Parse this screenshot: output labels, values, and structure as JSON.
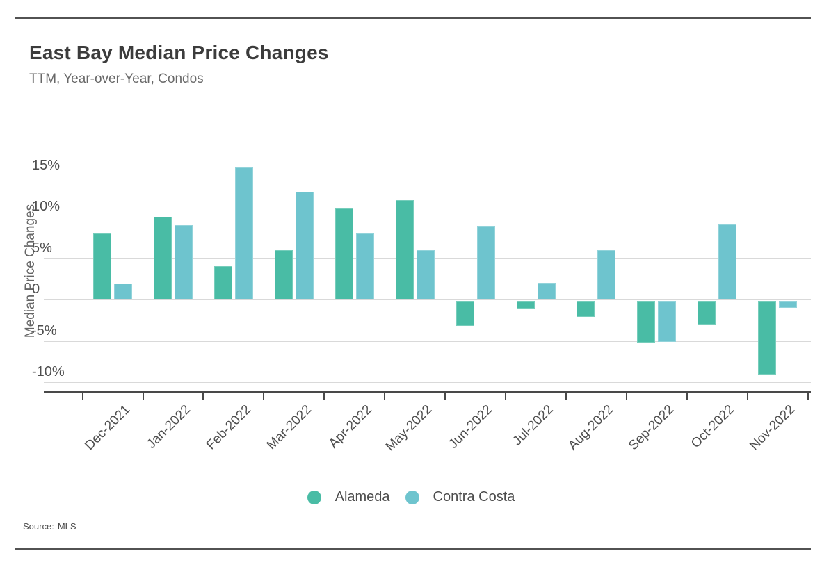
{
  "header": {
    "title": "East Bay Median Price Changes",
    "subtitle": "TTM, Year-over-Year, Condos"
  },
  "footer": {
    "source_label": "Source:",
    "source_value": "MLS"
  },
  "chart_data": {
    "type": "bar",
    "title": "East Bay Median Price Changes",
    "subtitle": "TTM, Year-over-Year, Condos",
    "xlabel": "",
    "ylabel": "Median Price Changes",
    "categories": [
      "Dec-2021",
      "Jan-2022",
      "Feb-2022",
      "Mar-2022",
      "Apr-2022",
      "May-2022",
      "Jun-2022",
      "Jul-2022",
      "Aug-2022",
      "Sep-2022",
      "Oct-2022",
      "Nov-2022"
    ],
    "series": [
      {
        "name": "Alameda",
        "color": "#49bca5",
        "values": [
          8.0,
          10.0,
          4.0,
          6.0,
          11.0,
          12.0,
          -3.2,
          -1.1,
          -2.1,
          -5.2,
          -3.1,
          -9.1
        ]
      },
      {
        "name": "Contra Costa",
        "color": "#6ec4ce",
        "values": [
          1.9,
          9.0,
          16.0,
          13.0,
          8.0,
          6.0,
          8.9,
          2.0,
          6.0,
          -5.1,
          9.1,
          -1.0
        ]
      }
    ],
    "yticks": [
      {
        "value": 15,
        "label": "15%"
      },
      {
        "value": 10,
        "label": "10%"
      },
      {
        "value": 5,
        "label": "5%"
      },
      {
        "value": 0,
        "label": "0"
      },
      {
        "value": -5,
        "label": "-5%"
      },
      {
        "value": -10,
        "label": "-10%"
      }
    ],
    "ylim": [
      -11,
      18
    ],
    "grid": true,
    "legend_position": "bottom",
    "axis_color": "#494949",
    "gridline_color": "#d9d9d9"
  }
}
